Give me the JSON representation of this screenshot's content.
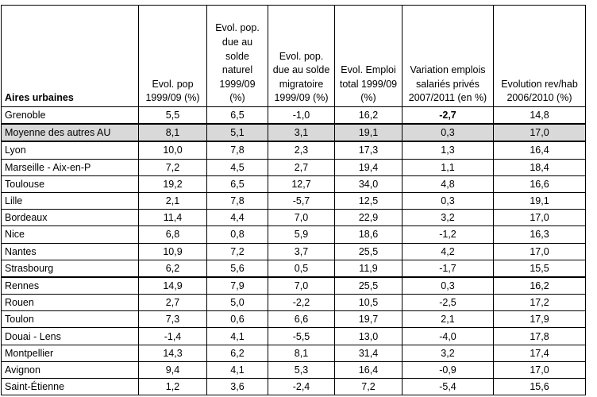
{
  "headers": [
    "Aires urbaines",
    "Evol. pop 1999/09 (%)",
    "Evol. pop. due au solde naturel 1999/09 (%)",
    "Evol. pop. due au solde migratoire 1999/09 (%)",
    "Evol. Emploi total 1999/09 (%)",
    "Variation emplois salariés privés 2007/2011 (en %)",
    "Evolution rev/hab 2006/2010 (%)"
  ],
  "rows": [
    {
      "name": "Grenoble",
      "values": [
        "5,5",
        "6,5",
        "-1,0",
        "16,2",
        "-2,7",
        "14,8"
      ]
    },
    {
      "name": "Moyenne des autres AU",
      "values": [
        "8,1",
        "5,1",
        "3,1",
        "19,1",
        "0,3",
        "17,0"
      ]
    },
    {
      "name": "Lyon",
      "values": [
        "10,0",
        "7,8",
        "2,3",
        "17,3",
        "1,3",
        "16,4"
      ]
    },
    {
      "name": "Marseille - Aix-en-P",
      "values": [
        "7,2",
        "4,5",
        "2,7",
        "19,4",
        "1,1",
        "18,4"
      ]
    },
    {
      "name": "Toulouse",
      "values": [
        "19,2",
        "6,5",
        "12,7",
        "34,0",
        "4,8",
        "16,6"
      ]
    },
    {
      "name": "Lille",
      "values": [
        "2,1",
        "7,8",
        "-5,7",
        "12,5",
        "0,3",
        "19,1"
      ]
    },
    {
      "name": "Bordeaux",
      "values": [
        "11,4",
        "4,4",
        "7,0",
        "22,9",
        "3,2",
        "17,0"
      ]
    },
    {
      "name": "Nice",
      "values": [
        "6,8",
        "0,8",
        "5,9",
        "18,6",
        "-1,2",
        "16,3"
      ]
    },
    {
      "name": "Nantes",
      "values": [
        "10,9",
        "7,2",
        "3,7",
        "25,5",
        "4,2",
        "17,0"
      ]
    },
    {
      "name": "Strasbourg",
      "values": [
        "6,2",
        "5,6",
        "0,5",
        "11,9",
        "-1,7",
        "15,5"
      ]
    },
    {
      "name": "Rennes",
      "values": [
        "14,9",
        "7,9",
        "7,0",
        "25,5",
        "0,3",
        "16,2"
      ]
    },
    {
      "name": "Rouen",
      "values": [
        "2,7",
        "5,0",
        "-2,2",
        "10,5",
        "-2,5",
        "17,2"
      ]
    },
    {
      "name": "Toulon",
      "values": [
        "7,3",
        "0,6",
        "6,6",
        "19,7",
        "2,1",
        "17,9"
      ]
    },
    {
      "name": "Douai - Lens",
      "values": [
        "-1,4",
        "4,1",
        "-5,5",
        "13,0",
        "-4,0",
        "17,8"
      ]
    },
    {
      "name": "Montpellier",
      "values": [
        "14,3",
        "6,2",
        "8,1",
        "31,4",
        "3,2",
        "17,4"
      ]
    },
    {
      "name": "Avignon",
      "values": [
        "9,4",
        "4,1",
        "5,3",
        "16,4",
        "-0,9",
        "17,0"
      ]
    },
    {
      "name": "Saint-Étienne",
      "values": [
        "1,2",
        "3,6",
        "-2,4",
        "7,2",
        "-5,4",
        "15,6"
      ]
    }
  ]
}
